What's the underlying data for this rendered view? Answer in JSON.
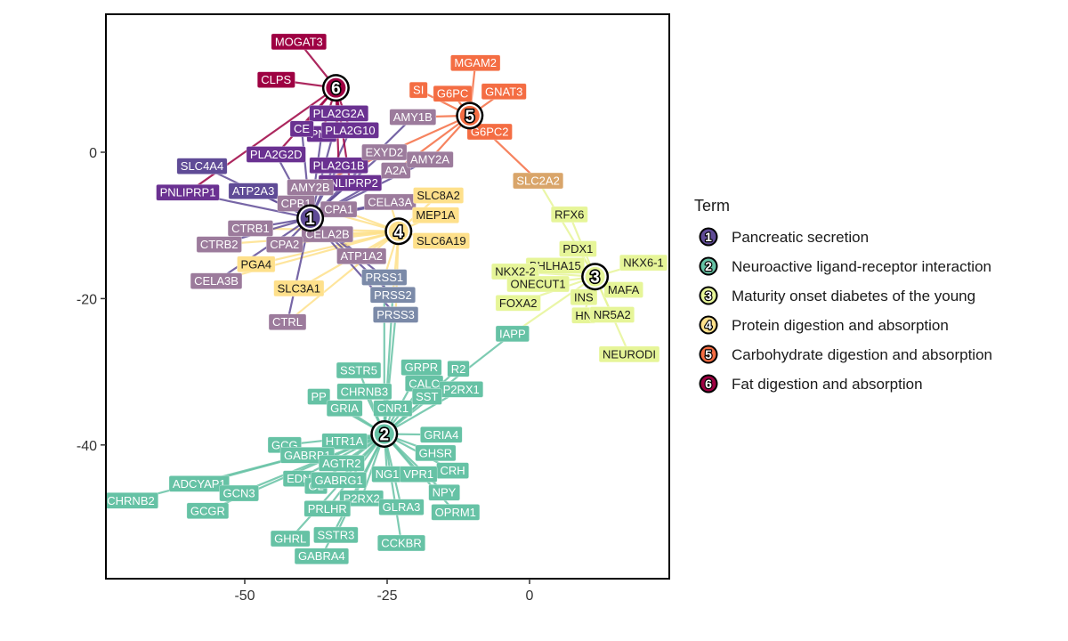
{
  "chart_data": {
    "type": "network",
    "xlim": [
      -73,
      24
    ],
    "ylim": [
      -58,
      19
    ],
    "x_ticks": [
      -50,
      -25,
      0
    ],
    "y_ticks": [
      0,
      -20,
      -40
    ],
    "legend_title": "Term",
    "legend_position": "right",
    "grid": false,
    "terms": [
      {
        "id": "1",
        "name": "Pancreatic secretion",
        "color": "#5f4b96",
        "x": -38.5,
        "y": -9
      },
      {
        "id": "2",
        "name": "Neuroactive ligand-receptor interaction",
        "color": "#66c2a5",
        "x": -25.5,
        "y": -38.5
      },
      {
        "id": "3",
        "name": "Maturity onset diabetes of the young",
        "color": "#e6f598",
        "x": 11.5,
        "y": -17
      },
      {
        "id": "4",
        "name": "Protein digestion and absorption",
        "color": "#fee08b",
        "x": -23,
        "y": -10.8
      },
      {
        "id": "5",
        "name": "Carbohydrate digestion and absorption",
        "color": "#f46d43",
        "x": -10.5,
        "y": 5
      },
      {
        "id": "6",
        "name": "Fat digestion and absorption",
        "color": "#9e0142",
        "x": -34,
        "y": 8.8
      }
    ],
    "genes": [
      {
        "label": "MOGAT3",
        "x": -40.5,
        "y": 15.1,
        "color": "#9e0142",
        "terms": [
          "6"
        ]
      },
      {
        "label": "CLPS",
        "x": -44.5,
        "y": 9.9,
        "color": "#9e0142",
        "terms": [
          "6"
        ]
      },
      {
        "label": "PLA2G2A",
        "x": -33.5,
        "y": 5.3,
        "color": "#6a3191",
        "terms": [
          "1",
          "6"
        ]
      },
      {
        "label": "PNL",
        "x": -36.5,
        "y": 2.5,
        "color": "#6a3191",
        "terms": [
          "1",
          "6"
        ]
      },
      {
        "label": "PLA2G10",
        "x": -31.5,
        "y": 3.0,
        "color": "#6a3191",
        "terms": [
          "1",
          "6"
        ]
      },
      {
        "label": "CE",
        "x": -40.0,
        "y": 3.2,
        "color": "#6a3191",
        "terms": [
          "1",
          "6"
        ]
      },
      {
        "label": "PLA2G2D",
        "x": -44.5,
        "y": -0.3,
        "color": "#6a3191",
        "terms": [
          "1",
          "6"
        ]
      },
      {
        "label": "SLC4A4",
        "x": -57.5,
        "y": -1.9,
        "color": "#5f4b96",
        "terms": [
          "1"
        ]
      },
      {
        "label": "PLA2G1B",
        "x": -33.5,
        "y": -1.8,
        "color": "#6a3191",
        "terms": [
          "1",
          "6"
        ]
      },
      {
        "label": "PNLIPRP2",
        "x": -31.5,
        "y": -4.2,
        "color": "#6a3191",
        "terms": [
          "1",
          "6"
        ]
      },
      {
        "label": "PNLIPRP1",
        "x": -60.0,
        "y": -5.5,
        "color": "#6a3191",
        "terms": [
          "1",
          "6"
        ]
      },
      {
        "label": "ATP2A3",
        "x": -48.5,
        "y": -5.3,
        "color": "#5f4b96",
        "terms": [
          "1"
        ]
      },
      {
        "label": "AMY1B",
        "x": -20.5,
        "y": 4.8,
        "color": "#9c7b9c",
        "terms": [
          "1",
          "5"
        ]
      },
      {
        "label": "EXYD2",
        "x": -25.5,
        "y": 0.0,
        "color": "#9c7b9c",
        "terms": [
          "1"
        ]
      },
      {
        "label": "A2A",
        "x": -23.5,
        "y": -2.5,
        "color": "#9c7b9c",
        "terms": [
          "1",
          "5"
        ]
      },
      {
        "label": "AMY2A",
        "x": -17.5,
        "y": -1.0,
        "color": "#9c7b9c",
        "terms": [
          "1",
          "5"
        ]
      },
      {
        "label": "AMY2B",
        "x": -38.5,
        "y": -4.8,
        "color": "#9c7b9c",
        "terms": [
          "1",
          "5"
        ]
      },
      {
        "label": "CPB1",
        "x": -41.0,
        "y": -7.0,
        "color": "#9c7b9c",
        "terms": [
          "1",
          "4"
        ]
      },
      {
        "label": "CPA1",
        "x": -33.5,
        "y": -7.8,
        "color": "#9c7b9c",
        "terms": [
          "1",
          "4"
        ]
      },
      {
        "label": "CELA3A",
        "x": -24.5,
        "y": -6.8,
        "color": "#9c7b9c",
        "terms": [
          "1",
          "4"
        ]
      },
      {
        "label": "CTRB1",
        "x": -49.0,
        "y": -10.4,
        "color": "#9c7b9c",
        "terms": [
          "1",
          "4"
        ]
      },
      {
        "label": "CELA2B",
        "x": -35.5,
        "y": -11.2,
        "color": "#9c7b9c",
        "terms": [
          "1",
          "4"
        ]
      },
      {
        "label": "CTRB2",
        "x": -54.5,
        "y": -12.6,
        "color": "#9c7b9c",
        "terms": [
          "1",
          "4"
        ]
      },
      {
        "label": "CPA2",
        "x": -43.0,
        "y": -12.6,
        "color": "#9c7b9c",
        "terms": [
          "1",
          "4"
        ]
      },
      {
        "label": "ATP1A2",
        "x": -29.5,
        "y": -14.2,
        "color": "#9c7b9c",
        "terms": [
          "1",
          "4"
        ]
      },
      {
        "label": "PGA4",
        "x": -48.0,
        "y": -15.3,
        "color": "#fee08b",
        "terms": [
          "4"
        ]
      },
      {
        "label": "CELA3B",
        "x": -55.0,
        "y": -17.6,
        "color": "#9c7b9c",
        "terms": [
          "1",
          "4"
        ]
      },
      {
        "label": "SLC3A1",
        "x": -40.5,
        "y": -18.6,
        "color": "#fee08b",
        "terms": [
          "4"
        ]
      },
      {
        "label": "CTRL",
        "x": -42.5,
        "y": -23.2,
        "color": "#9c7b9c",
        "terms": [
          "1",
          "4"
        ]
      },
      {
        "label": "PRSS1",
        "x": -25.5,
        "y": -17.1,
        "color": "#7b8aa8",
        "terms": [
          "1",
          "4",
          "2"
        ]
      },
      {
        "label": "PRSS2",
        "x": -24.0,
        "y": -19.5,
        "color": "#7b8aa8",
        "terms": [
          "1",
          "4",
          "2"
        ]
      },
      {
        "label": "PRSS3",
        "x": -23.5,
        "y": -22.2,
        "color": "#7b8aa8",
        "terms": [
          "1",
          "4",
          "2"
        ]
      },
      {
        "label": "SLC8A2",
        "x": -16.0,
        "y": -5.9,
        "color": "#fee08b",
        "terms": [
          "4",
          "1"
        ]
      },
      {
        "label": "MEP1A",
        "x": -16.5,
        "y": -8.6,
        "color": "#fee08b",
        "terms": [
          "4"
        ]
      },
      {
        "label": "SLC6A19",
        "x": -15.5,
        "y": -12.1,
        "color": "#fee08b",
        "terms": [
          "4"
        ]
      },
      {
        "label": "MGAM2",
        "x": -9.5,
        "y": 12.2,
        "color": "#f46d43",
        "terms": [
          "5"
        ]
      },
      {
        "label": "SI",
        "x": -19.5,
        "y": 8.5,
        "color": "#f46d43",
        "terms": [
          "5"
        ]
      },
      {
        "label": "G6PC",
        "x": -13.5,
        "y": 8.0,
        "color": "#f46d43",
        "terms": [
          "5"
        ]
      },
      {
        "label": "GNAT3",
        "x": -4.5,
        "y": 8.3,
        "color": "#f46d43",
        "terms": [
          "5"
        ]
      },
      {
        "label": "G6PC2",
        "x": -7.0,
        "y": 2.8,
        "color": "#f46d43",
        "terms": [
          "5"
        ]
      },
      {
        "label": "SLC2A2",
        "x": 1.5,
        "y": -3.9,
        "color": "#d9a56a",
        "terms": [
          "5",
          "3"
        ]
      },
      {
        "label": "RFX6",
        "x": 7.0,
        "y": -8.5,
        "color": "#e6f598",
        "terms": [
          "3"
        ]
      },
      {
        "label": "PDX1",
        "x": 8.5,
        "y": -13.2,
        "color": "#e6f598",
        "terms": [
          "3"
        ]
      },
      {
        "label": "NKX6-1",
        "x": 20.0,
        "y": -15.1,
        "color": "#e6f598",
        "terms": [
          "3"
        ]
      },
      {
        "label": "BHLHA15",
        "x": 4.5,
        "y": -15.5,
        "color": "#e6f598",
        "terms": [
          "3"
        ]
      },
      {
        "label": "NKX2-2",
        "x": -2.5,
        "y": -16.3,
        "color": "#e6f598",
        "terms": [
          "3"
        ]
      },
      {
        "label": "ONECUT1",
        "x": 1.5,
        "y": -18.0,
        "color": "#e6f598",
        "terms": [
          "3"
        ]
      },
      {
        "label": "MAFA",
        "x": 16.5,
        "y": -18.8,
        "color": "#e6f598",
        "terms": [
          "3"
        ]
      },
      {
        "label": "INS",
        "x": 9.5,
        "y": -19.8,
        "color": "#e6f598",
        "terms": [
          "3"
        ]
      },
      {
        "label": "FOXA2",
        "x": -2.0,
        "y": -20.6,
        "color": "#e6f598",
        "terms": [
          "3"
        ]
      },
      {
        "label": "HN",
        "x": 9.5,
        "y": -22.3,
        "color": "#e6f598",
        "terms": [
          "3"
        ]
      },
      {
        "label": "NR5A2",
        "x": 14.5,
        "y": -22.2,
        "color": "#e6f598",
        "terms": [
          "3"
        ]
      },
      {
        "label": "NEURODI",
        "x": 17.5,
        "y": -27.6,
        "color": "#e6f598",
        "terms": [
          "3"
        ]
      },
      {
        "label": "IAPP",
        "x": -3.0,
        "y": -24.8,
        "color": "#66c2a5",
        "terms": [
          "2",
          "3"
        ]
      },
      {
        "label": "SSTR5",
        "x": -30.0,
        "y": -29.8,
        "color": "#66c2a5",
        "terms": [
          "2"
        ]
      },
      {
        "label": "GRPR",
        "x": -19.0,
        "y": -29.4,
        "color": "#66c2a5",
        "terms": [
          "2"
        ]
      },
      {
        "label": "R2",
        "x": -12.5,
        "y": -29.6,
        "color": "#66c2a5",
        "terms": [
          "2"
        ]
      },
      {
        "label": "CALC",
        "x": -18.5,
        "y": -31.6,
        "color": "#66c2a5",
        "terms": [
          "2"
        ]
      },
      {
        "label": "P2RX1",
        "x": -12.0,
        "y": -32.4,
        "color": "#66c2a5",
        "terms": [
          "2"
        ]
      },
      {
        "label": "PP",
        "x": -37.0,
        "y": -33.4,
        "color": "#66c2a5",
        "terms": [
          "2"
        ]
      },
      {
        "label": "CHRNB3",
        "x": -29.0,
        "y": -32.7,
        "color": "#66c2a5",
        "terms": [
          "2"
        ]
      },
      {
        "label": "SST",
        "x": -18.0,
        "y": -33.4,
        "color": "#66c2a5",
        "terms": [
          "2"
        ]
      },
      {
        "label": "GRIA",
        "x": -32.5,
        "y": -35.0,
        "color": "#66c2a5",
        "terms": [
          "2"
        ]
      },
      {
        "label": "CNR1",
        "x": -24.0,
        "y": -35.0,
        "color": "#66c2a5",
        "terms": [
          "2"
        ]
      },
      {
        "label": "GRIA4",
        "x": -15.5,
        "y": -38.6,
        "color": "#66c2a5",
        "terms": [
          "2"
        ]
      },
      {
        "label": "GCG",
        "x": -43.0,
        "y": -40.0,
        "color": "#66c2a5",
        "terms": [
          "2"
        ]
      },
      {
        "label": "HTR1A",
        "x": -32.5,
        "y": -39.5,
        "color": "#66c2a5",
        "terms": [
          "2"
        ]
      },
      {
        "label": "GHSR",
        "x": -16.5,
        "y": -41.1,
        "color": "#66c2a5",
        "terms": [
          "2"
        ]
      },
      {
        "label": "GABRB1",
        "x": -39.0,
        "y": -41.4,
        "color": "#66c2a5",
        "terms": [
          "2"
        ]
      },
      {
        "label": "AGTR2",
        "x": -33.0,
        "y": -42.5,
        "color": "#66c2a5",
        "terms": [
          "2"
        ]
      },
      {
        "label": "CRH",
        "x": -13.5,
        "y": -43.5,
        "color": "#66c2a5",
        "terms": [
          "2"
        ]
      },
      {
        "label": "EDN",
        "x": -40.5,
        "y": -44.6,
        "color": "#66c2a5",
        "terms": [
          "2"
        ]
      },
      {
        "label": "GL",
        "x": -37.5,
        "y": -45.6,
        "color": "#66c2a5",
        "terms": [
          "2"
        ]
      },
      {
        "label": "GABRG1",
        "x": -33.5,
        "y": -44.8,
        "color": "#66c2a5",
        "terms": [
          "2"
        ]
      },
      {
        "label": "NG1",
        "x": -25.0,
        "y": -44.0,
        "color": "#66c2a5",
        "terms": [
          "2"
        ]
      },
      {
        "label": "VPR1",
        "x": -19.5,
        "y": -44.0,
        "color": "#66c2a5",
        "terms": [
          "2"
        ]
      },
      {
        "label": "ADCYAP1",
        "x": -58.0,
        "y": -45.3,
        "color": "#66c2a5",
        "terms": [
          "2"
        ]
      },
      {
        "label": "GCN3",
        "x": -51.0,
        "y": -46.6,
        "color": "#66c2a5",
        "terms": [
          "2"
        ]
      },
      {
        "label": "NPY",
        "x": -15.0,
        "y": -46.5,
        "color": "#66c2a5",
        "terms": [
          "2"
        ]
      },
      {
        "label": "P2RX2",
        "x": -29.5,
        "y": -47.3,
        "color": "#66c2a5",
        "terms": [
          "2"
        ]
      },
      {
        "label": "CHRNB2",
        "x": -70.0,
        "y": -47.6,
        "color": "#66c2a5",
        "terms": [
          "2"
        ]
      },
      {
        "label": "PRLHR",
        "x": -35.5,
        "y": -48.7,
        "color": "#66c2a5",
        "terms": [
          "2"
        ]
      },
      {
        "label": "GLRA3",
        "x": -22.5,
        "y": -48.5,
        "color": "#66c2a5",
        "terms": [
          "2"
        ]
      },
      {
        "label": "GCGR",
        "x": -56.5,
        "y": -49.0,
        "color": "#66c2a5",
        "terms": [
          "2"
        ]
      },
      {
        "label": "OPRM1",
        "x": -13.0,
        "y": -49.2,
        "color": "#66c2a5",
        "terms": [
          "2"
        ]
      },
      {
        "label": "SSTR3",
        "x": -34.0,
        "y": -52.3,
        "color": "#66c2a5",
        "terms": [
          "2"
        ]
      },
      {
        "label": "GHRL",
        "x": -42.0,
        "y": -52.8,
        "color": "#66c2a5",
        "terms": [
          "2"
        ]
      },
      {
        "label": "CCKBR",
        "x": -22.5,
        "y": -53.4,
        "color": "#66c2a5",
        "terms": [
          "2"
        ]
      },
      {
        "label": "GABRA4",
        "x": -36.5,
        "y": -55.2,
        "color": "#66c2a5",
        "terms": [
          "2"
        ]
      }
    ]
  }
}
